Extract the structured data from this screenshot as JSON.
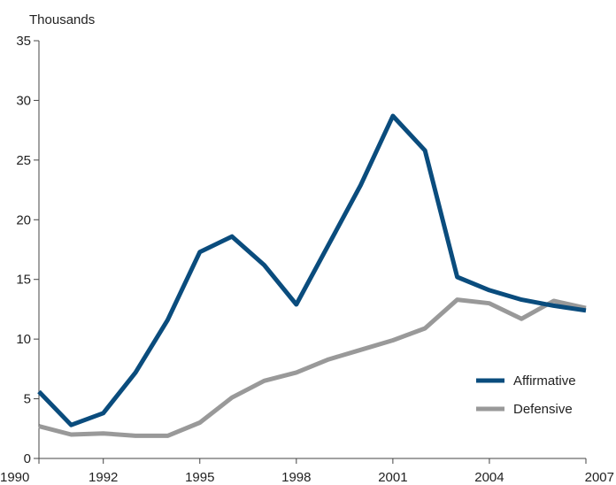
{
  "chart_data": {
    "type": "line",
    "ylabel": "Thousands",
    "ylim": [
      0,
      35
    ],
    "yticks": [
      0,
      5,
      10,
      15,
      20,
      25,
      30,
      35
    ],
    "xlim": [
      1990,
      2007
    ],
    "xticks": [
      1990,
      1992,
      1995,
      1998,
      2001,
      2004,
      2007
    ],
    "grid": false,
    "legend_position": "bottom-right",
    "x": [
      1990,
      1991,
      1992,
      1993,
      1994,
      1995,
      1996,
      1997,
      1998,
      1999,
      2000,
      2001,
      2002,
      2003,
      2004,
      2005,
      2006,
      2007
    ],
    "series": [
      {
        "name": "Affirmative",
        "color": "#0a4c7d",
        "values": [
          5.6,
          2.8,
          3.8,
          7.2,
          11.6,
          17.3,
          18.6,
          16.2,
          12.9,
          17.9,
          22.9,
          28.7,
          25.8,
          15.2,
          14.1,
          13.3,
          12.8,
          12.4
        ]
      },
      {
        "name": "Defensive",
        "color": "#999999",
        "values": [
          2.7,
          2.0,
          2.1,
          1.9,
          1.9,
          3.0,
          5.1,
          6.5,
          7.2,
          8.3,
          9.1,
          9.9,
          10.9,
          13.3,
          13.0,
          11.7,
          13.2,
          12.6
        ]
      }
    ]
  }
}
